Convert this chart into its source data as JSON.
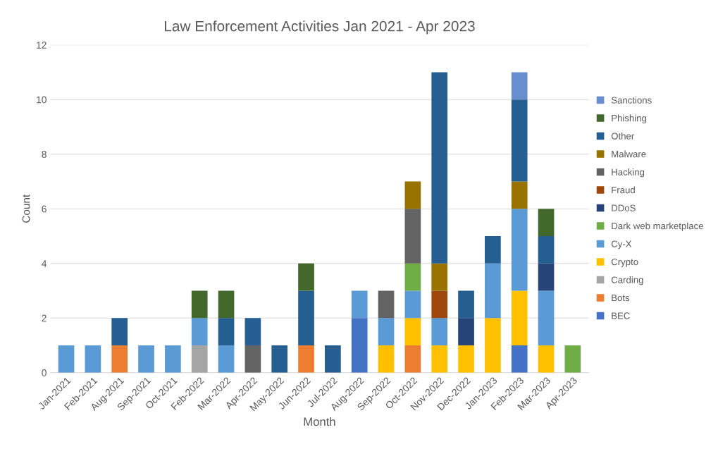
{
  "chart_data": {
    "type": "bar",
    "stacked": true,
    "title": "Law Enforcement Activities Jan 2021 - Apr 2023",
    "xlabel": "Month",
    "ylabel": "Count",
    "categories": [
      "Jan-2021",
      "Feb-2021",
      "Aug-2021",
      "Sep-2021",
      "Oct-2021",
      "Feb-2022",
      "Mar-2022",
      "Apr-2022",
      "May-2022",
      "Jun-2022",
      "Jul-2022",
      "Aug-2022",
      "Sep-2022",
      "Oct-2022",
      "Nov-2022",
      "Dec-2022",
      "Jan-2023",
      "Feb-2023",
      "Mar-2023",
      "Apr-2023"
    ],
    "ylim": [
      0,
      12
    ],
    "yticks": [
      0,
      2,
      4,
      6,
      8,
      10,
      12
    ],
    "grid": "y",
    "legend": "right",
    "series": [
      {
        "name": "BEC",
        "color": "#4472c4",
        "values": [
          null,
          null,
          null,
          null,
          null,
          null,
          null,
          null,
          null,
          null,
          null,
          2,
          null,
          null,
          null,
          null,
          null,
          1,
          null,
          null
        ]
      },
      {
        "name": "Bots",
        "color": "#ed7d31",
        "values": [
          null,
          null,
          1,
          null,
          null,
          null,
          null,
          null,
          null,
          1,
          null,
          null,
          null,
          1,
          null,
          null,
          null,
          null,
          null,
          null
        ]
      },
      {
        "name": "Carding",
        "color": "#a5a5a5",
        "values": [
          null,
          null,
          null,
          null,
          null,
          1,
          null,
          null,
          null,
          null,
          null,
          null,
          null,
          null,
          null,
          null,
          null,
          null,
          null,
          null
        ]
      },
      {
        "name": "Crypto",
        "color": "#ffc000",
        "values": [
          null,
          null,
          null,
          null,
          null,
          null,
          null,
          null,
          null,
          null,
          null,
          null,
          1,
          1,
          1,
          1,
          2,
          2,
          1,
          null
        ]
      },
      {
        "name": "Cy-X",
        "color": "#5b9bd5",
        "values": [
          1,
          1,
          null,
          1,
          1,
          1,
          1,
          null,
          null,
          null,
          null,
          1,
          1,
          1,
          1,
          null,
          2,
          3,
          2,
          null
        ]
      },
      {
        "name": "Dark web marketplace",
        "color": "#70ad47",
        "values": [
          null,
          null,
          null,
          null,
          null,
          null,
          null,
          null,
          null,
          null,
          null,
          null,
          null,
          1,
          null,
          null,
          null,
          null,
          null,
          1
        ]
      },
      {
        "name": "DDoS",
        "color": "#264478",
        "values": [
          null,
          null,
          null,
          null,
          null,
          null,
          null,
          null,
          null,
          null,
          null,
          null,
          null,
          null,
          null,
          1,
          null,
          null,
          1,
          null
        ]
      },
      {
        "name": "Fraud",
        "color": "#9e480e",
        "values": [
          null,
          null,
          null,
          null,
          null,
          null,
          null,
          null,
          null,
          null,
          null,
          null,
          null,
          null,
          1,
          null,
          null,
          null,
          null,
          null
        ]
      },
      {
        "name": "Hacking",
        "color": "#636363",
        "values": [
          null,
          null,
          null,
          null,
          null,
          null,
          null,
          1,
          null,
          null,
          null,
          null,
          1,
          2,
          null,
          null,
          null,
          null,
          null,
          null
        ]
      },
      {
        "name": "Malware",
        "color": "#997300",
        "values": [
          null,
          null,
          null,
          null,
          null,
          null,
          null,
          null,
          null,
          null,
          null,
          null,
          null,
          1,
          1,
          null,
          null,
          1,
          null,
          null
        ]
      },
      {
        "name": "Other",
        "color": "#255e91",
        "values": [
          null,
          null,
          1,
          null,
          null,
          null,
          1,
          1,
          1,
          2,
          1,
          null,
          null,
          null,
          7,
          1,
          1,
          3,
          1,
          null
        ]
      },
      {
        "name": "Phishing",
        "color": "#43682b",
        "values": [
          null,
          null,
          null,
          null,
          null,
          1,
          1,
          null,
          null,
          1,
          null,
          null,
          null,
          null,
          null,
          null,
          null,
          null,
          1,
          null
        ]
      },
      {
        "name": "Sanctions",
        "color": "#698ed0",
        "values": [
          null,
          null,
          null,
          null,
          null,
          null,
          null,
          null,
          null,
          null,
          null,
          null,
          null,
          null,
          null,
          null,
          null,
          1,
          null,
          null
        ]
      }
    ]
  }
}
